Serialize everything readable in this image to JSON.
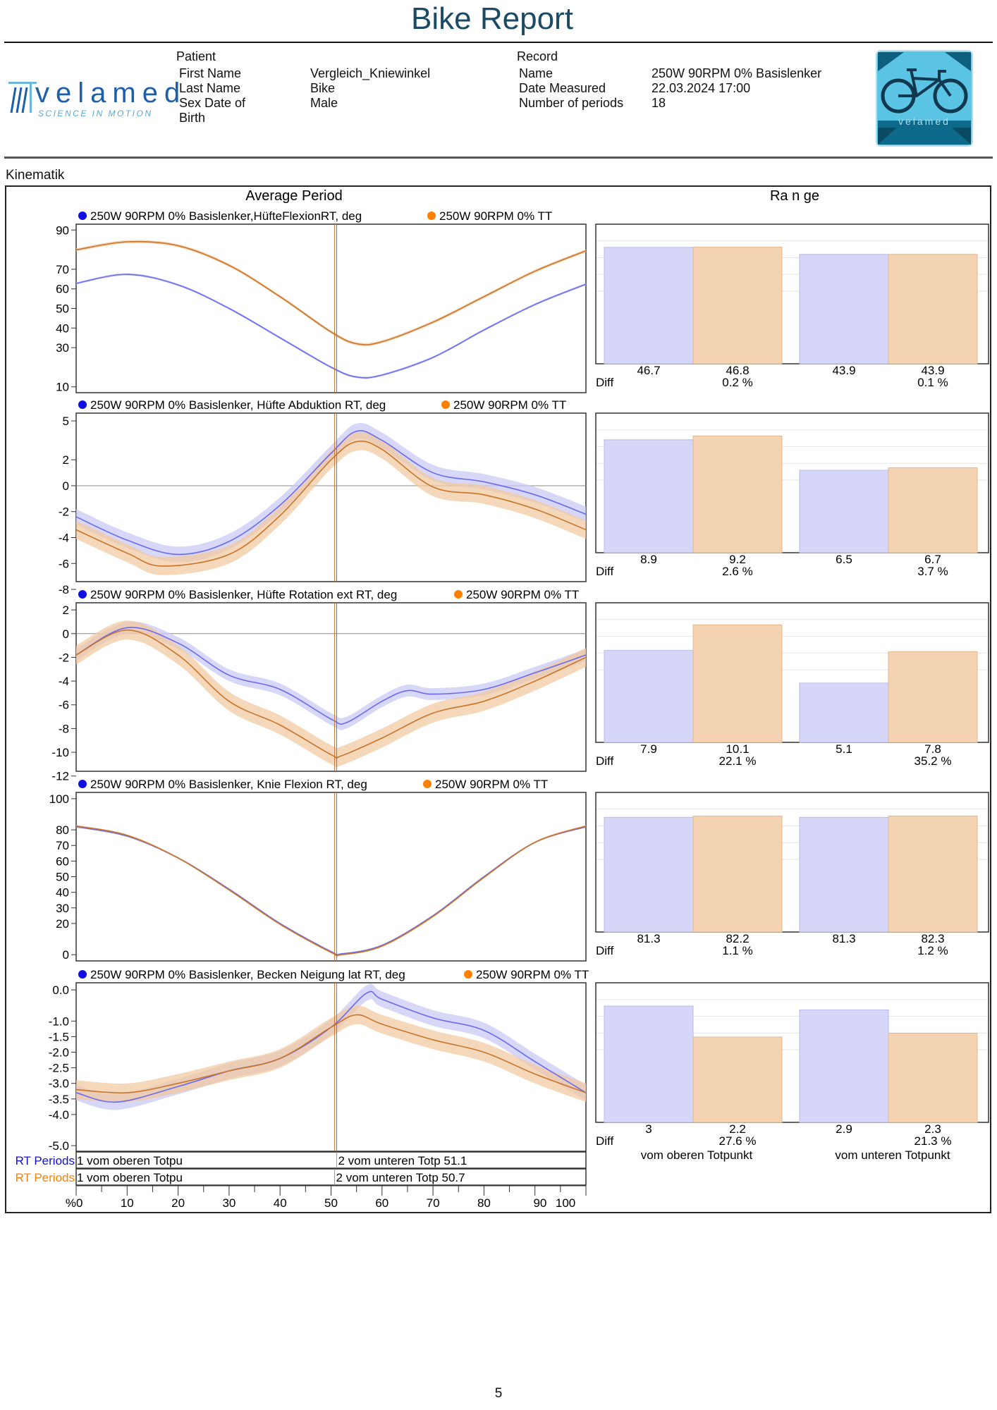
{
  "header": {
    "title": "Bike Report",
    "patient": {
      "heading": "Patient",
      "rows": [
        {
          "label": "First   Name",
          "value": "Vergleich_Kniewinkel"
        },
        {
          "label": "Last    Name",
          "value": "Bike"
        },
        {
          "label": "Sex  Date  of",
          "value": "Male"
        },
        {
          "label": "Birth",
          "value": ""
        }
      ]
    },
    "record": {
      "heading": "Record",
      "rows": [
        {
          "label": "Name",
          "value": "250W 90RPM 0% Basislenker"
        },
        {
          "label": "Date Measured",
          "value": "22.03.2024 17:00"
        },
        {
          "label": "Number of periods",
          "value": "18"
        }
      ]
    },
    "logo_left": {
      "word": "velamed",
      "tagline": "SCIENCE IN MOTION"
    },
    "logo_right": {
      "word": "velamed"
    }
  },
  "section": "Kinematik",
  "left_title": "Average Period",
  "right_title": "Ra n ge",
  "colors": {
    "series1": "#6a6af0",
    "series1_band": "#c9c9f6",
    "series2": "#c8742a",
    "series2_band": "#f2c9a2",
    "bar1": "#d6d6f8",
    "bar2": "#f4d3b2",
    "legend1": "#1010e0",
    "legend2": "#ff8000"
  },
  "chart_data": [
    {
      "type": "line",
      "legend": [
        "250W 90RPM 0% Basislenker,HüfteFlexionRT, deg",
        "250W 90RPM 0% TT"
      ],
      "ylim": [
        7,
        93
      ],
      "yticks": [
        90,
        70,
        60,
        50,
        40,
        30,
        10
      ],
      "xlim": [
        0,
        100
      ],
      "series": [
        {
          "x": [
            0,
            10,
            20,
            30,
            40,
            50,
            55,
            60,
            70,
            80,
            90,
            100
          ],
          "y": [
            62.8,
            67.4,
            62,
            50,
            35,
            20,
            15,
            16,
            25,
            39,
            52,
            62.4
          ],
          "band": 0.6
        },
        {
          "x": [
            0,
            10,
            20,
            30,
            40,
            50,
            55,
            60,
            70,
            80,
            90,
            100
          ],
          "y": [
            79.9,
            84,
            82,
            72,
            56,
            38,
            32,
            33,
            43,
            56,
            69,
            79.4
          ],
          "band": 0.8
        }
      ],
      "range": {
        "values": [
          46.7,
          46.8,
          43.9,
          43.9
        ],
        "diffs": [
          "0.2 %",
          "0.1 %"
        ],
        "ymax": 56
      }
    },
    {
      "type": "line",
      "legend": [
        "250W 90RPM 0% Basislenker, Hüfte Abduktion RT, deg",
        "250W 90RPM 0% TT"
      ],
      "ylim": [
        -7.4,
        5.6
      ],
      "yticks": [
        5,
        2,
        0,
        -2,
        -4,
        -6,
        -8
      ],
      "xlim": [
        0,
        100
      ],
      "zero_line": true,
      "series": [
        {
          "x": [
            0,
            10,
            20,
            30,
            40,
            50,
            55,
            60,
            70,
            80,
            90,
            100
          ],
          "y": [
            -2.4,
            -4.2,
            -5.3,
            -4.3,
            -1.5,
            2.5,
            4.2,
            3.5,
            1,
            0.3,
            -0.7,
            -2.2
          ],
          "band": 0.6
        },
        {
          "x": [
            0,
            10,
            17,
            30,
            40,
            50,
            55,
            60,
            70,
            80,
            90,
            100
          ],
          "y": [
            -3.4,
            -5.2,
            -6.2,
            -5.3,
            -2.3,
            2,
            3.4,
            2.8,
            -0.1,
            -0.7,
            -1.8,
            -3.4
          ],
          "band": 0.7
        }
      ],
      "range": {
        "values": [
          8.9,
          9.2,
          6.5,
          6.7
        ],
        "diffs": [
          "2.6 %",
          "3.7 %"
        ],
        "ymax": 11
      }
    },
    {
      "type": "line",
      "legend": [
        "250W 90RPM 0% Basislenker, Hüfte Rotation ext RT, deg",
        "250W 90RPM 0% TT"
      ],
      "ylim": [
        -11.6,
        2.6
      ],
      "yticks": [
        2,
        0,
        -2,
        -4,
        -6,
        -8,
        -10,
        -12
      ],
      "xlim": [
        0,
        100
      ],
      "zero_line": true,
      "series": [
        {
          "x": [
            0,
            10,
            20,
            30,
            40,
            50,
            53,
            60,
            65,
            70,
            80,
            90,
            100
          ],
          "y": [
            -1.8,
            0.5,
            -0.8,
            -3.5,
            -4.7,
            -7.2,
            -7.5,
            -5.7,
            -4.8,
            -5.1,
            -4.7,
            -3.3,
            -1.8
          ],
          "band": 0.5
        },
        {
          "x": [
            0,
            10,
            20,
            30,
            40,
            50,
            52,
            60,
            70,
            80,
            90,
            100
          ],
          "y": [
            -1.8,
            0.3,
            -1.8,
            -5.7,
            -7.7,
            -10.2,
            -10.3,
            -8.8,
            -6.7,
            -5.7,
            -4,
            -2
          ],
          "band": 0.8
        }
      ],
      "range": {
        "values": [
          7.9,
          10.1,
          5.1,
          7.8
        ],
        "diffs": [
          "22.1 %",
          "35.2 %"
        ],
        "ymax": 12
      }
    },
    {
      "type": "line",
      "legend": [
        "250W 90RPM 0% Basislenker, Knie Flexion RT, deg",
        "250W 90RPM 0% TT"
      ],
      "ylim": [
        -4,
        104
      ],
      "yticks": [
        100,
        80,
        70,
        60,
        50,
        40,
        30,
        20,
        0
      ],
      "xlim": [
        0,
        100
      ],
      "series": [
        {
          "x": [
            0,
            10,
            20,
            30,
            40,
            50,
            52,
            60,
            70,
            80,
            90,
            100
          ],
          "y": [
            82,
            76,
            62,
            42,
            20,
            2,
            0.5,
            6,
            25,
            50,
            72,
            82
          ],
          "band": 0.5
        },
        {
          "x": [
            0,
            10,
            20,
            30,
            40,
            50,
            52,
            60,
            70,
            80,
            90,
            100
          ],
          "y": [
            82.5,
            76.5,
            62,
            41.5,
            19.5,
            1.5,
            0,
            5.5,
            24.5,
            49.5,
            72,
            82.5
          ],
          "band": 0.6
        }
      ],
      "range": {
        "values": [
          81.3,
          82.2,
          81.3,
          82.3
        ],
        "diffs": [
          "1.1 %",
          "1.2 %"
        ],
        "ymax": 99
      }
    },
    {
      "type": "line",
      "legend": [
        "250W 90RPM 0% Basislenker, Becken Neigung lat RT, deg",
        "250W 90RPM 0% TT"
      ],
      "ylim": [
        -5.18,
        0.23
      ],
      "yticks": [
        0.0,
        -1.0,
        -1.5,
        -2.0,
        -2.5,
        -3.0,
        -3.5,
        -4.0,
        -5.0
      ],
      "xlim": [
        0,
        100
      ],
      "series": [
        {
          "x": [
            0,
            8,
            20,
            30,
            40,
            50,
            57,
            60,
            70,
            80,
            90,
            100
          ],
          "y": [
            -3.3,
            -3.6,
            -3.1,
            -2.6,
            -2.2,
            -1.2,
            -0.1,
            -0.3,
            -0.9,
            -1.3,
            -2.3,
            -3.3
          ],
          "band": 0.25
        },
        {
          "x": [
            0,
            10,
            20,
            30,
            40,
            50,
            55,
            60,
            70,
            80,
            90,
            100
          ],
          "y": [
            -3.2,
            -3.3,
            -3.0,
            -2.6,
            -2.2,
            -1.2,
            -0.8,
            -1.1,
            -1.6,
            -2.0,
            -2.7,
            -3.3
          ],
          "band": 0.3
        }
      ],
      "range": {
        "values": [
          3.0,
          2.2,
          2.9,
          2.3
        ],
        "diffs": [
          "27.6 %",
          "21.3 %"
        ],
        "ymax": 3.6
      }
    }
  ],
  "diff_label": "Diff",
  "range_categories": [
    "vom oberen Totpunkt",
    "vom unteren Totpunkt"
  ],
  "periods": [
    {
      "label": "RT Periods",
      "first": "1 vom oberen Totpu",
      "second": "2 vom unteren Totp 51.1",
      "split": 51.1
    },
    {
      "label": "RT Periods",
      "first": "1 vom oberen Totpu",
      "second": "2 vom unteren Totp 50.7",
      "split": 50.7
    }
  ],
  "x_axis": {
    "unit": "%",
    "ticks": [
      0,
      10,
      20,
      30,
      40,
      50,
      60,
      70,
      80,
      90,
      100
    ]
  },
  "page_number": "5"
}
